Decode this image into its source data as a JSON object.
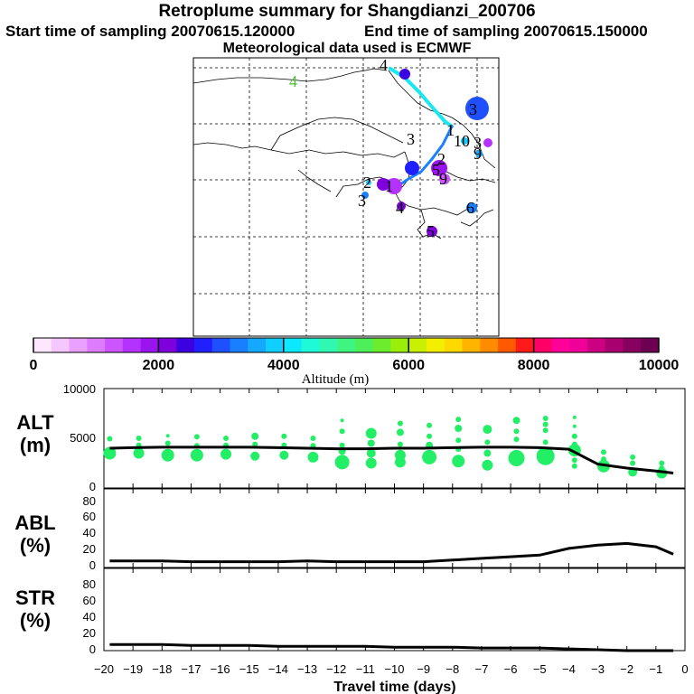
{
  "header": {
    "title": "Retroplume summary for Shangdianzi_200706",
    "start": "Start time of sampling 20070615.120000",
    "end": "End time of sampling 20070615.150000",
    "met": "Meteorological data used is ECMWF"
  },
  "colorbar": {
    "label": "Altitude (m)",
    "ticks": [
      "0",
      "2000",
      "4000",
      "6000",
      "8000",
      "10000"
    ],
    "colors": [
      "#ffe6ff",
      "#f5c6ff",
      "#e9a0ff",
      "#dd7cff",
      "#cc55ff",
      "#b432ff",
      "#9a14f0",
      "#7d00dd",
      "#3d00e0",
      "#2020ff",
      "#1e50ff",
      "#1a7fff",
      "#15a8ff",
      "#10ceff",
      "#0ce8ff",
      "#1efad8",
      "#30f8b0",
      "#3ef582",
      "#4ef05a",
      "#6bec2c",
      "#9aef0a",
      "#c8f000",
      "#f2f000",
      "#ffd800",
      "#ffb400",
      "#ff8c00",
      "#ff5a00",
      "#ff1a1a",
      "#ff0066",
      "#ff0099",
      "#f00099",
      "#cc0080",
      "#a8006e",
      "#880060",
      "#6e0052"
    ]
  },
  "map_labels": [
    {
      "text": "4",
      "color": "#48c030"
    },
    {
      "text": "4",
      "color": "#000000"
    },
    {
      "text": "3",
      "color": "#000000"
    },
    {
      "text": "3",
      "color": "#000000"
    },
    {
      "text": "1",
      "color": "#000000"
    },
    {
      "text": "10",
      "color": "#000000"
    },
    {
      "text": "3",
      "color": "#000000"
    },
    {
      "text": "9",
      "color": "#000000"
    },
    {
      "text": "5",
      "color": "#000000"
    },
    {
      "text": "2",
      "color": "#000000"
    },
    {
      "text": "9",
      "color": "#000000"
    },
    {
      "text": "2",
      "color": "#000000"
    },
    {
      "text": "1",
      "color": "#000000"
    },
    {
      "text": "3",
      "color": "#000000"
    },
    {
      "text": "4",
      "color": "#000000"
    },
    {
      "text": "6",
      "color": "#000000"
    },
    {
      "text": "5",
      "color": "#000000"
    }
  ],
  "panels": {
    "alt": {
      "label": "ALT",
      "unit": "(m)",
      "ticks": [
        "10000",
        "5000",
        "0"
      ]
    },
    "abl": {
      "label": "ABL",
      "unit": "(%)",
      "ticks": [
        "80",
        "60",
        "40",
        "20",
        "0"
      ]
    },
    "str": {
      "label": "STR",
      "unit": "(%)",
      "ticks": [
        "80",
        "60",
        "40",
        "20",
        "0"
      ]
    }
  },
  "xaxis": {
    "label": "Travel time (days)",
    "ticks": [
      "−20",
      "−19",
      "−18",
      "−17",
      "−16",
      "−15",
      "−14",
      "−13",
      "−12",
      "−11",
      "−10",
      "−9",
      "−8",
      "−7",
      "−6",
      "−5",
      "−4",
      "−3",
      "−2",
      "−1",
      "0"
    ]
  },
  "chart_data": [
    {
      "type": "line",
      "title": "ALT",
      "xlabel": "Travel time (days)",
      "ylabel": "ALT (m)",
      "xlim": [
        -20,
        0
      ],
      "ylim": [
        0,
        10000
      ],
      "x": [
        -19.8,
        -19,
        -18,
        -17,
        -16,
        -15,
        -14,
        -13,
        -12,
        -11,
        -10,
        -9,
        -8,
        -7,
        -6,
        -5,
        -4,
        -3,
        -2,
        -1,
        -0.4
      ],
      "y": [
        4000,
        4050,
        4100,
        4100,
        4100,
        4100,
        4050,
        4000,
        3950,
        3950,
        4000,
        4000,
        4050,
        4100,
        4100,
        4050,
        3900,
        2400,
        2000,
        1700,
        1500
      ],
      "scatter": [
        {
          "x": -19.8,
          "y": 3500,
          "s": 7
        },
        {
          "x": -19.8,
          "y": 4950,
          "s": 3
        },
        {
          "x": -18.8,
          "y": 3500,
          "s": 6
        },
        {
          "x": -18.8,
          "y": 4300,
          "s": 3
        },
        {
          "x": -18.8,
          "y": 5000,
          "s": 3
        },
        {
          "x": -17.8,
          "y": 3300,
          "s": 7
        },
        {
          "x": -17.8,
          "y": 4500,
          "s": 3
        },
        {
          "x": -17.8,
          "y": 5250,
          "s": 2
        },
        {
          "x": -16.8,
          "y": 3300,
          "s": 7
        },
        {
          "x": -16.8,
          "y": 4250,
          "s": 3
        },
        {
          "x": -16.8,
          "y": 5150,
          "s": 3
        },
        {
          "x": -15.8,
          "y": 3400,
          "s": 6
        },
        {
          "x": -15.8,
          "y": 4300,
          "s": 3
        },
        {
          "x": -15.8,
          "y": 5000,
          "s": 3
        },
        {
          "x": -14.8,
          "y": 3200,
          "s": 5
        },
        {
          "x": -14.8,
          "y": 4400,
          "s": 3
        },
        {
          "x": -14.8,
          "y": 5200,
          "s": 4
        },
        {
          "x": -13.8,
          "y": 3300,
          "s": 5
        },
        {
          "x": -13.8,
          "y": 4300,
          "s": 3
        },
        {
          "x": -13.8,
          "y": 5200,
          "s": 3
        },
        {
          "x": -12.8,
          "y": 3100,
          "s": 6
        },
        {
          "x": -12.8,
          "y": 4250,
          "s": 3
        },
        {
          "x": -12.8,
          "y": 5000,
          "s": 3
        },
        {
          "x": -11.8,
          "y": 2600,
          "s": 8
        },
        {
          "x": -11.8,
          "y": 3700,
          "s": 4
        },
        {
          "x": -11.8,
          "y": 4300,
          "s": 3
        },
        {
          "x": -11.8,
          "y": 5700,
          "s": 3
        },
        {
          "x": -11.8,
          "y": 6800,
          "s": 2
        },
        {
          "x": -10.8,
          "y": 2500,
          "s": 6
        },
        {
          "x": -10.8,
          "y": 3500,
          "s": 5
        },
        {
          "x": -10.8,
          "y": 4500,
          "s": 4
        },
        {
          "x": -10.8,
          "y": 5500,
          "s": 6
        },
        {
          "x": -9.8,
          "y": 2600,
          "s": 6
        },
        {
          "x": -9.8,
          "y": 3300,
          "s": 6
        },
        {
          "x": -9.8,
          "y": 4400,
          "s": 3
        },
        {
          "x": -9.8,
          "y": 5600,
          "s": 4
        },
        {
          "x": -9.8,
          "y": 6500,
          "s": 3
        },
        {
          "x": -8.8,
          "y": 3100,
          "s": 8
        },
        {
          "x": -8.8,
          "y": 4300,
          "s": 4
        },
        {
          "x": -8.8,
          "y": 5200,
          "s": 3
        },
        {
          "x": -8.8,
          "y": 6300,
          "s": 3
        },
        {
          "x": -7.8,
          "y": 2700,
          "s": 7
        },
        {
          "x": -7.8,
          "y": 3900,
          "s": 3
        },
        {
          "x": -7.8,
          "y": 4800,
          "s": 3
        },
        {
          "x": -7.8,
          "y": 6000,
          "s": 4
        },
        {
          "x": -7.8,
          "y": 6900,
          "s": 3
        },
        {
          "x": -6.8,
          "y": 2300,
          "s": 6
        },
        {
          "x": -6.8,
          "y": 3500,
          "s": 4
        },
        {
          "x": -6.8,
          "y": 4600,
          "s": 3
        },
        {
          "x": -6.8,
          "y": 5900,
          "s": 5
        },
        {
          "x": -5.8,
          "y": 3000,
          "s": 9
        },
        {
          "x": -5.8,
          "y": 4900,
          "s": 3
        },
        {
          "x": -5.8,
          "y": 5700,
          "s": 3
        },
        {
          "x": -5.8,
          "y": 6800,
          "s": 4
        },
        {
          "x": -4.8,
          "y": 3200,
          "s": 10
        },
        {
          "x": -4.8,
          "y": 4600,
          "s": 3
        },
        {
          "x": -4.8,
          "y": 5800,
          "s": 3
        },
        {
          "x": -4.8,
          "y": 6400,
          "s": 3
        },
        {
          "x": -4.8,
          "y": 7000,
          "s": 3
        },
        {
          "x": -3.8,
          "y": 2200,
          "s": 3
        },
        {
          "x": -3.8,
          "y": 2800,
          "s": 3
        },
        {
          "x": -3.8,
          "y": 3800,
          "s": 7
        },
        {
          "x": -3.8,
          "y": 4400,
          "s": 3
        },
        {
          "x": -3.8,
          "y": 5200,
          "s": 3
        },
        {
          "x": -3.8,
          "y": 6200,
          "s": 2
        },
        {
          "x": -3.8,
          "y": 7100,
          "s": 2
        },
        {
          "x": -2.8,
          "y": 2200,
          "s": 7
        },
        {
          "x": -2.8,
          "y": 2900,
          "s": 3
        },
        {
          "x": -2.8,
          "y": 3600,
          "s": 3
        },
        {
          "x": -1.8,
          "y": 1600,
          "s": 5
        },
        {
          "x": -1.8,
          "y": 2500,
          "s": 3
        },
        {
          "x": -1.8,
          "y": 3100,
          "s": 3
        },
        {
          "x": -0.8,
          "y": 1500,
          "s": 6
        },
        {
          "x": -0.8,
          "y": 2000,
          "s": 3
        },
        {
          "x": -0.8,
          "y": 2500,
          "s": 3
        }
      ]
    },
    {
      "type": "line",
      "title": "ABL",
      "xlabel": "Travel time (days)",
      "ylabel": "ABL (%)",
      "xlim": [
        -20,
        0
      ],
      "ylim": [
        0,
        95
      ],
      "x": [
        -19.8,
        -19,
        -18,
        -17,
        -16,
        -15,
        -14,
        -13,
        -12,
        -11,
        -10,
        -9,
        -8,
        -7,
        -6,
        -5,
        -4,
        -3,
        -2,
        -1,
        -0.4
      ],
      "y": [
        8,
        8,
        8,
        7,
        7,
        7,
        7,
        8,
        7,
        7,
        7,
        7,
        9,
        11,
        13,
        15,
        23,
        27,
        29,
        25,
        16
      ]
    },
    {
      "type": "line",
      "title": "STR",
      "xlabel": "Travel time (days)",
      "ylabel": "STR (%)",
      "xlim": [
        -20,
        0
      ],
      "ylim": [
        0,
        95
      ],
      "x": [
        -19.8,
        -19,
        -18,
        -17,
        -16,
        -15,
        -14,
        -13,
        -12,
        -11,
        -10,
        -9,
        -8,
        -7,
        -6,
        -5,
        -4,
        -3,
        -2,
        -1,
        -0.4
      ],
      "y": [
        7,
        7,
        7,
        6,
        6,
        6,
        5,
        5,
        5,
        5,
        4,
        4,
        4,
        3,
        3,
        3,
        2,
        1,
        0,
        0,
        0
      ]
    }
  ]
}
